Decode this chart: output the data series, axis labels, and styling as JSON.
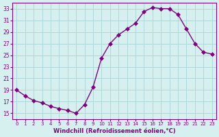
{
  "x": [
    0,
    1,
    2,
    3,
    4,
    5,
    6,
    7,
    8,
    9,
    10,
    11,
    12,
    13,
    14,
    15,
    16,
    17,
    18,
    19,
    20,
    21,
    22,
    23
  ],
  "y": [
    19.0,
    18.0,
    17.2,
    16.8,
    16.2,
    15.8,
    15.5,
    15.0,
    16.5,
    19.5,
    24.5,
    27.0,
    28.5,
    29.5,
    30.5,
    32.5,
    33.2,
    33.0,
    33.0,
    32.0,
    29.5,
    27.0,
    25.5,
    25.2
  ],
  "line_color": "#800080",
  "marker": "D",
  "marker_size": 3,
  "bg_color": "#d6f0f0",
  "grid_color": "#b0d8d8",
  "xlabel": "Windchill (Refroidissement éolien,°C)",
  "xlim": [
    -0.5,
    23.5
  ],
  "ylim": [
    14,
    34
  ],
  "yticks": [
    15,
    17,
    19,
    21,
    23,
    25,
    27,
    29,
    31,
    33
  ],
  "xticks": [
    0,
    1,
    2,
    3,
    4,
    5,
    6,
    7,
    8,
    9,
    10,
    11,
    12,
    13,
    14,
    15,
    16,
    17,
    18,
    19,
    20,
    21,
    22,
    23
  ],
  "axis_color": "#800080",
  "tick_color": "#800080",
  "xlabel_color": "#800080"
}
